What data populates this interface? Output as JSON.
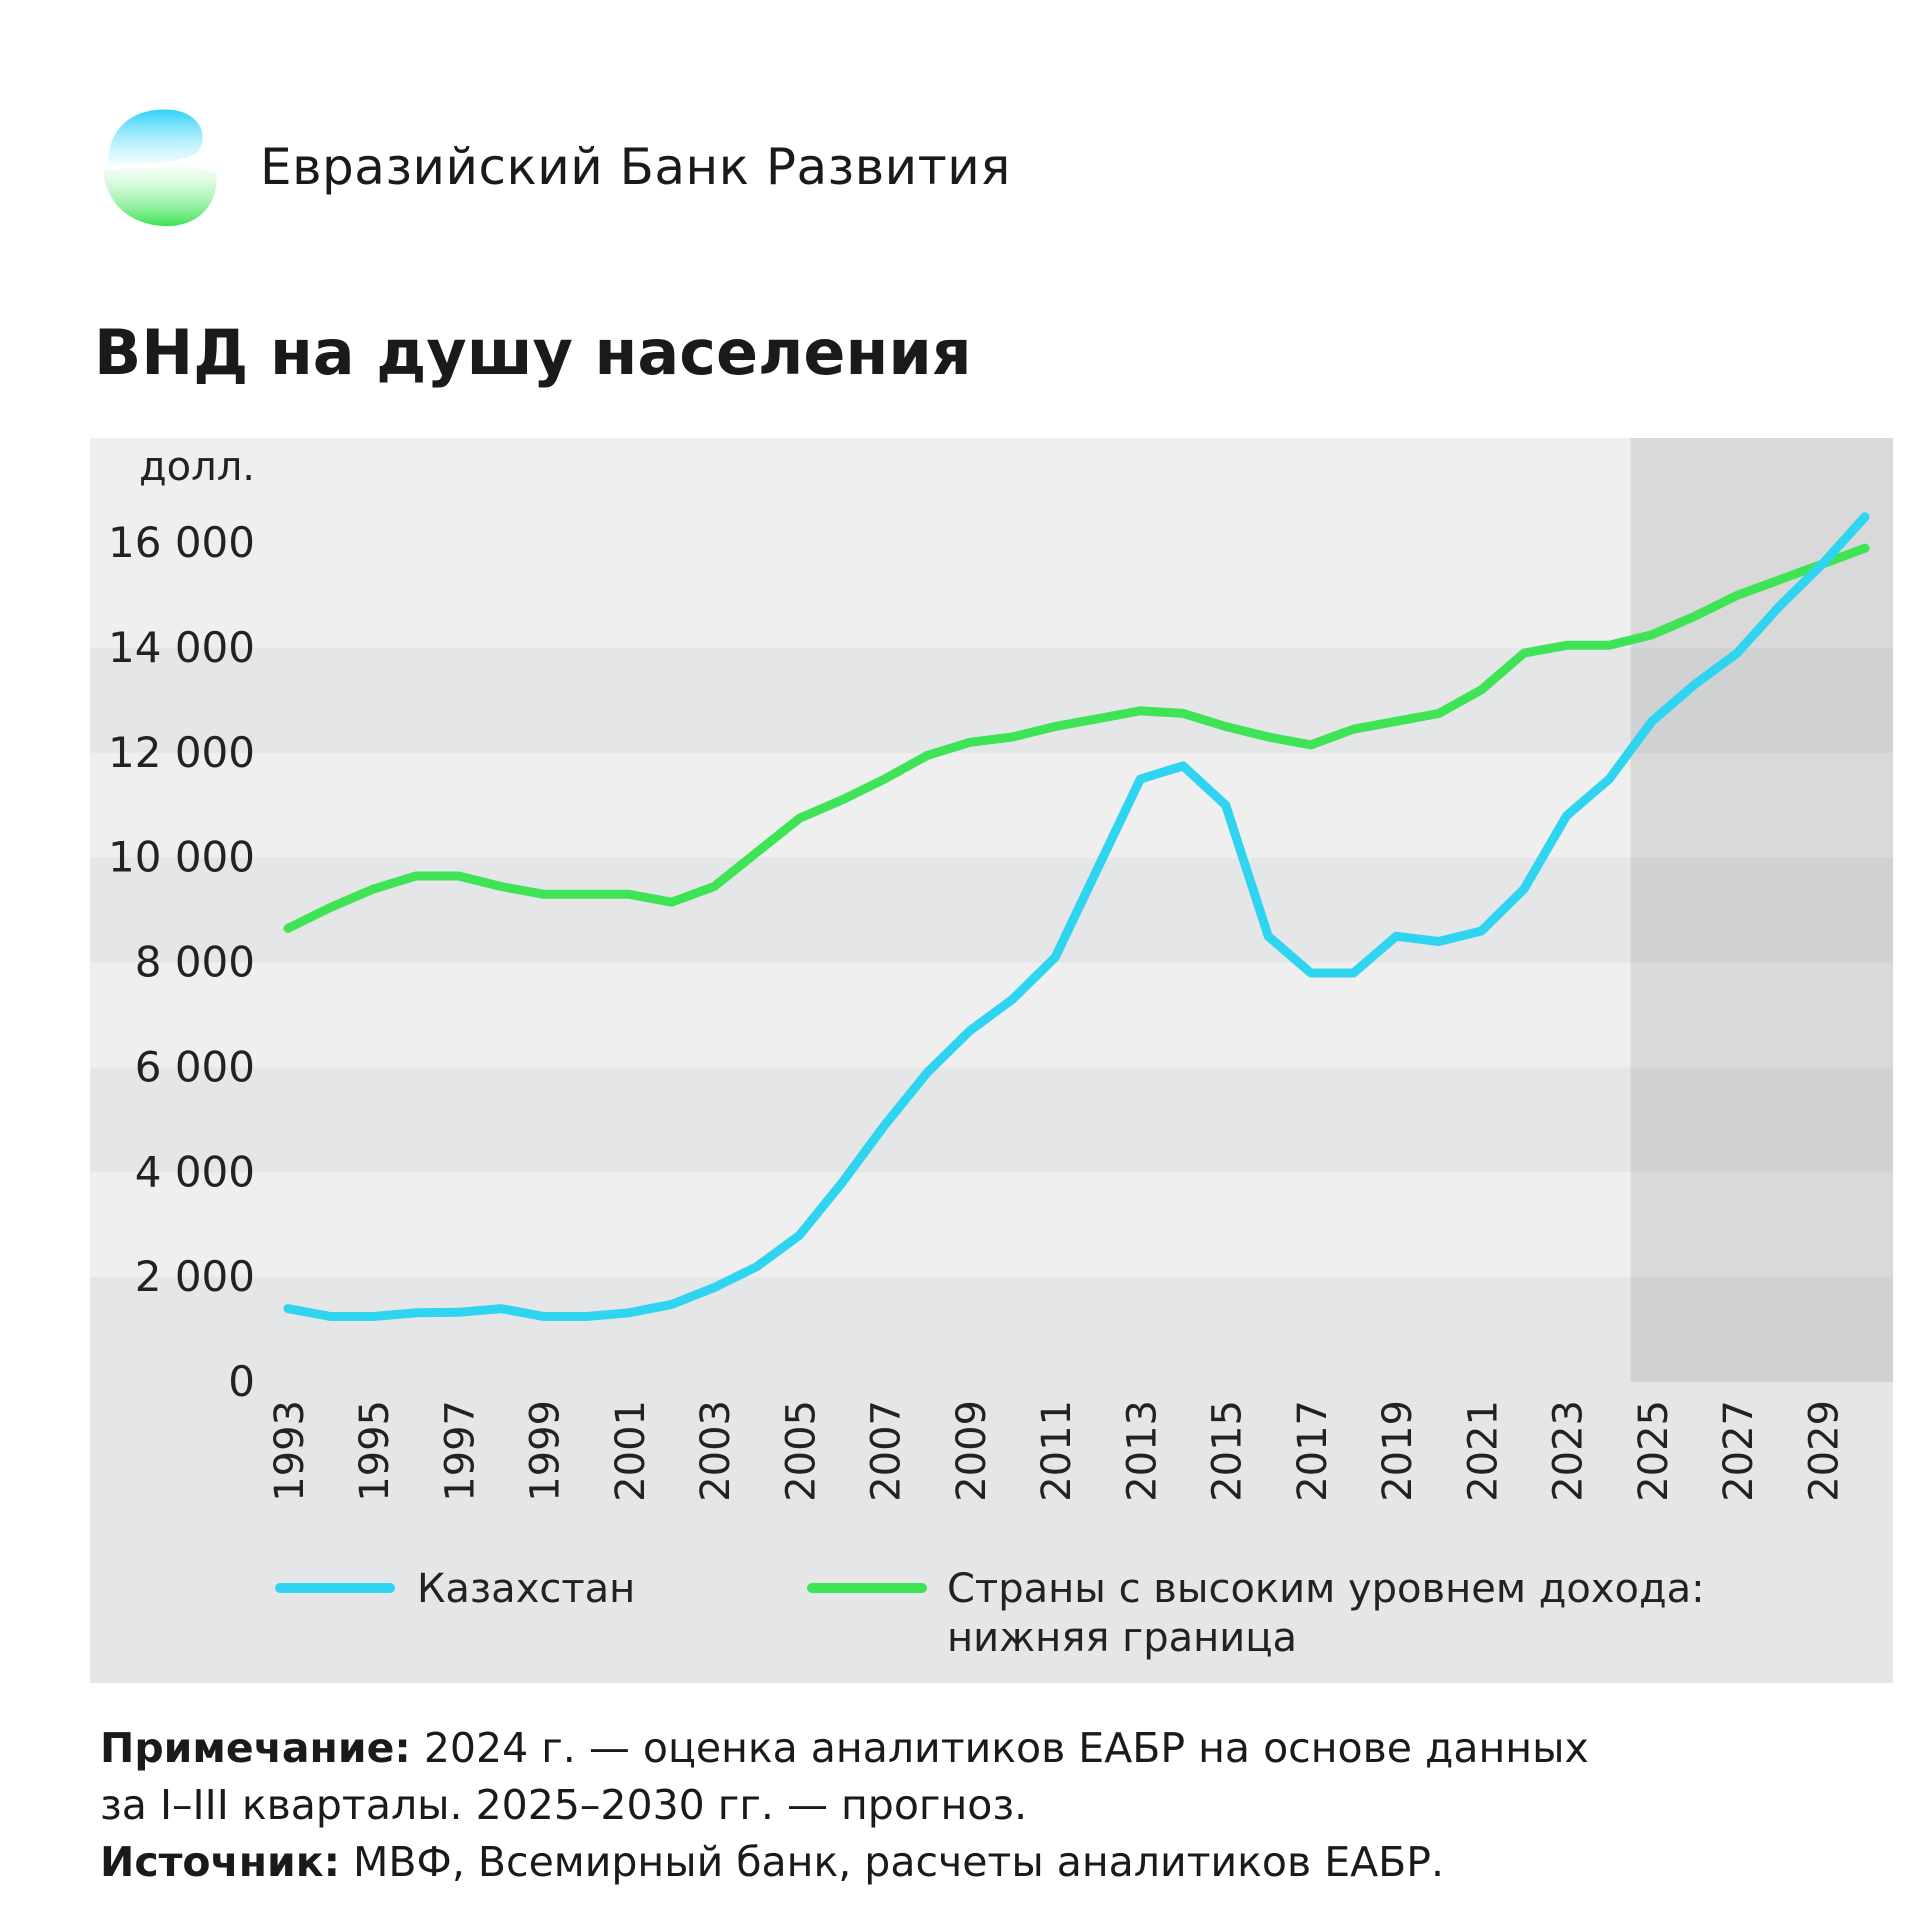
{
  "header": {
    "brand": "Евразийский Банк Развития"
  },
  "title": "ВНД на душу населения",
  "notes": {
    "note_label": "Примечание:",
    "note_text": "2024 г. — оценка аналитиков ЕАБР на основе данных",
    "note_text2": "за I–III кварталы. 2025–2030 гг. — прогноз.",
    "source_label": "Источник:",
    "source_text": "МВФ, Всемирный банк, расчеты аналитиков ЕАБР."
  },
  "chart_data": {
    "type": "line",
    "title": "ВНД на душу населения",
    "ylabel": "долл.",
    "ylim": [
      0,
      16000
    ],
    "yticks": [
      0,
      2000,
      4000,
      6000,
      8000,
      10000,
      12000,
      14000,
      16000
    ],
    "ytick_labels": [
      "0",
      "2 000",
      "4 000",
      "6 000",
      "8 000",
      "10 000",
      "12 000",
      "14 000",
      "16 000"
    ],
    "x": [
      1993,
      1994,
      1995,
      1996,
      1997,
      1998,
      1999,
      2000,
      2001,
      2002,
      2003,
      2004,
      2005,
      2006,
      2007,
      2008,
      2009,
      2010,
      2011,
      2012,
      2013,
      2014,
      2015,
      2016,
      2017,
      2018,
      2019,
      2020,
      2021,
      2022,
      2023,
      2024,
      2025,
      2026,
      2027,
      2028,
      2029,
      2030
    ],
    "xtick_labels": [
      "1993",
      "1995",
      "1997",
      "1999",
      "2001",
      "2003",
      "2005",
      "2007",
      "2009",
      "2011",
      "2013",
      "2015",
      "2017",
      "2019",
      "2021",
      "2023",
      "2025",
      "2027",
      "2029"
    ],
    "forecast_from": 2025,
    "legend_position": "bottom",
    "series": [
      {
        "name": "Казахстан",
        "color": "#2fd4f0",
        "values": [
          1400,
          1250,
          1250,
          1320,
          1330,
          1400,
          1250,
          1250,
          1320,
          1480,
          1800,
          2200,
          2800,
          3800,
          4900,
          5900,
          6700,
          7300,
          8100,
          9800,
          11500,
          11750,
          11000,
          8500,
          7800,
          7800,
          8500,
          8400,
          8600,
          9400,
          10800,
          11500,
          12600,
          13300,
          13900,
          14800,
          15600,
          16500
        ]
      },
      {
        "name": "Страны с высоким уровнем дохода: нижняя граница",
        "name_line1": "Страны с высоким уровнем дохода:",
        "name_line2": "нижняя граница",
        "color": "#3ee356",
        "values": [
          8650,
          9050,
          9400,
          9650,
          9650,
          9450,
          9300,
          9300,
          9300,
          9150,
          9450,
          10100,
          10750,
          11100,
          11500,
          11950,
          12200,
          12300,
          12500,
          12650,
          12800,
          12750,
          12500,
          12300,
          12150,
          12450,
          12600,
          12750,
          13200,
          13900,
          14050,
          14050,
          14250,
          14600,
          15000,
          15300,
          15600,
          15900
        ]
      }
    ]
  }
}
